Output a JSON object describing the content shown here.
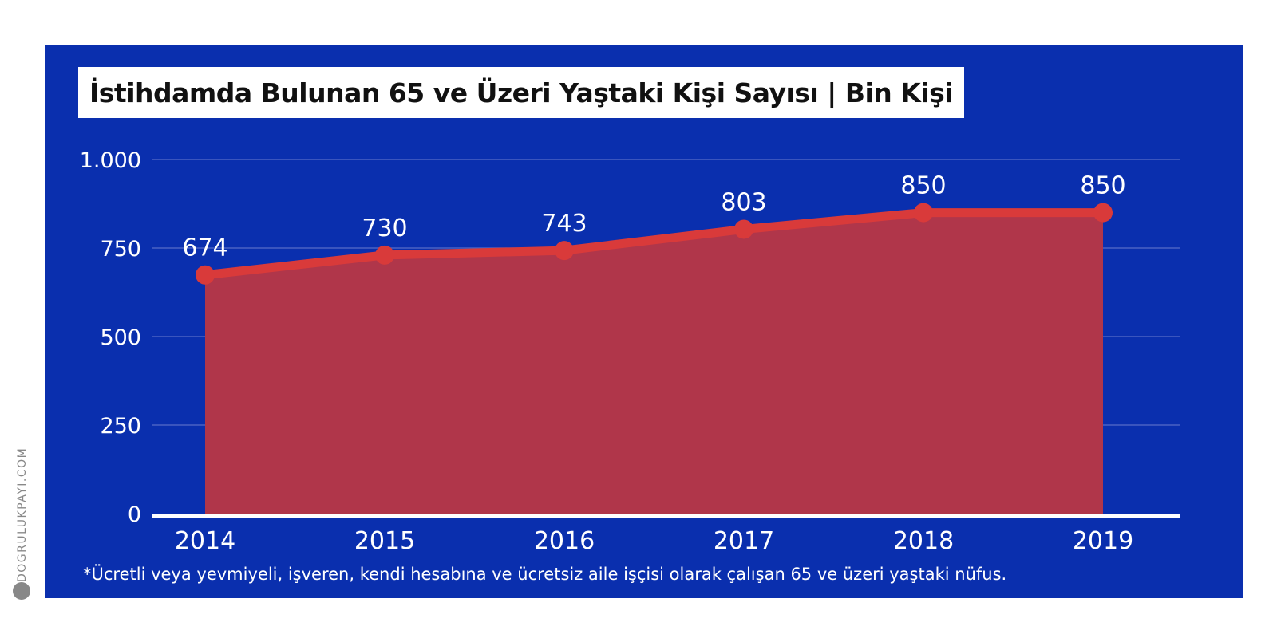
{
  "chart_data": {
    "type": "area",
    "title": "İstihdamda Bulunan 65 ve Üzeri Yaştaki Kişi Sayısı | Bin Kişi",
    "categories": [
      "2014",
      "2015",
      "2016",
      "2017",
      "2018",
      "2019"
    ],
    "values": [
      674,
      730,
      743,
      803,
      850,
      850
    ],
    "data_labels": [
      "674",
      "730",
      "743",
      "803",
      "850",
      "850"
    ],
    "yticks": [
      0,
      250,
      500,
      750,
      1000
    ],
    "ytick_labels": [
      "0",
      "250",
      "500",
      "750",
      "1.000"
    ],
    "ylim": [
      0,
      1000
    ],
    "grid": true,
    "colors": {
      "background": "#0a2fae",
      "line": "#d93a3a",
      "fill": "#b0364a",
      "grid": "#4a62c4",
      "text": "#ffffff"
    }
  },
  "footnote": "*Ücretli veya yevmiyeli, işveren, kendi hesabına ve ücretsiz aile işçisi olarak çalışan 65 ve üzeri yaştaki nüfus.",
  "brand": {
    "text": "DOGRULUKPAYI.COM",
    "icon": "logo-icon"
  }
}
